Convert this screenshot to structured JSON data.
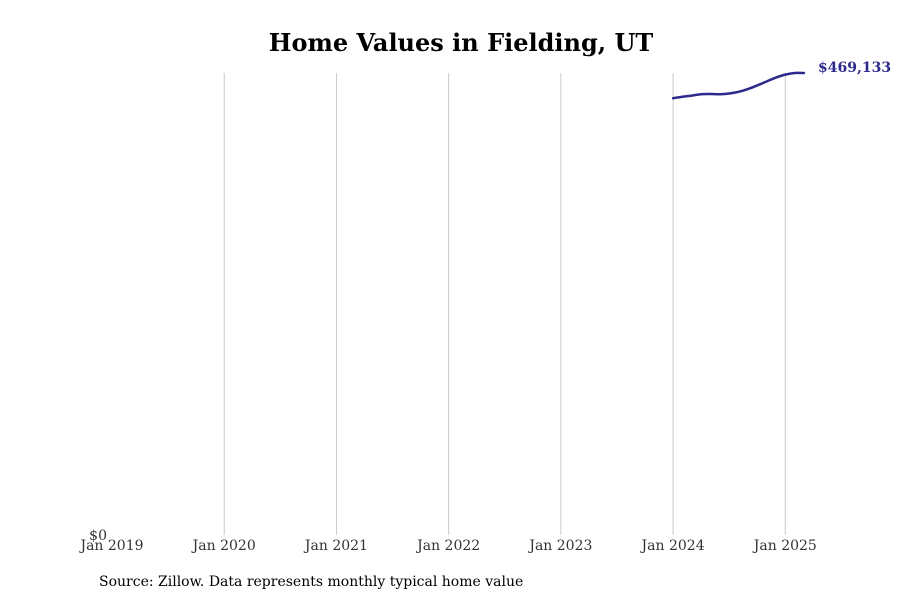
{
  "chart_data": {
    "type": "line",
    "title": "Home Values in Fielding, UT",
    "xlabel": "",
    "ylabel": "",
    "x_ticks": [
      "Jan 2019",
      "Jan 2020",
      "Jan 2021",
      "Jan 2022",
      "Jan 2023",
      "Jan 2024",
      "Jan 2025"
    ],
    "y_ticks": [
      "$0"
    ],
    "xlim": [
      "2019-01",
      "2025-03"
    ],
    "ylim": [
      0,
      469133
    ],
    "grid": "vertical",
    "line_color": "#2e2a8c",
    "series": [
      {
        "x": [
          "2024-01",
          "2024-02",
          "2024-03",
          "2024-04",
          "2024-05",
          "2024-06",
          "2024-07",
          "2024-08",
          "2024-09",
          "2024-10",
          "2024-11",
          "2024-12",
          "2025-01",
          "2025-02",
          "2025-03"
        ],
        "values": [
          443500,
          445000,
          446200,
          447600,
          447800,
          447600,
          448300,
          450000,
          452800,
          456500,
          460500,
          464500,
          467500,
          469100,
          469133
        ]
      }
    ],
    "end_label": "$469,133"
  },
  "source": "Source: Zillow. Data represents monthly typical home value"
}
